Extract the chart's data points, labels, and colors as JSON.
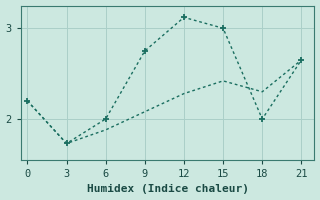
{
  "xlabel": "Humidex (Indice chaleur)",
  "background_color": "#cce8e0",
  "grid_color": "#aacfc8",
  "line_color": "#1a6e60",
  "line1_x": [
    0,
    3,
    6,
    9,
    12,
    15,
    18,
    21
  ],
  "line1_y": [
    2.2,
    1.73,
    2.0,
    2.75,
    3.12,
    3.0,
    2.0,
    2.65
  ],
  "line2_x": [
    0,
    3,
    6,
    9,
    12,
    15,
    18,
    21
  ],
  "line2_y": [
    2.2,
    1.73,
    1.88,
    2.08,
    2.28,
    2.42,
    2.3,
    2.65
  ],
  "xlim": [
    -0.5,
    22
  ],
  "ylim": [
    1.55,
    3.25
  ],
  "xticks": [
    0,
    3,
    6,
    9,
    12,
    15,
    18,
    21
  ],
  "yticks": [
    2,
    3
  ],
  "linewidth": 1.0,
  "markersize": 5,
  "xlabel_fontsize": 8
}
